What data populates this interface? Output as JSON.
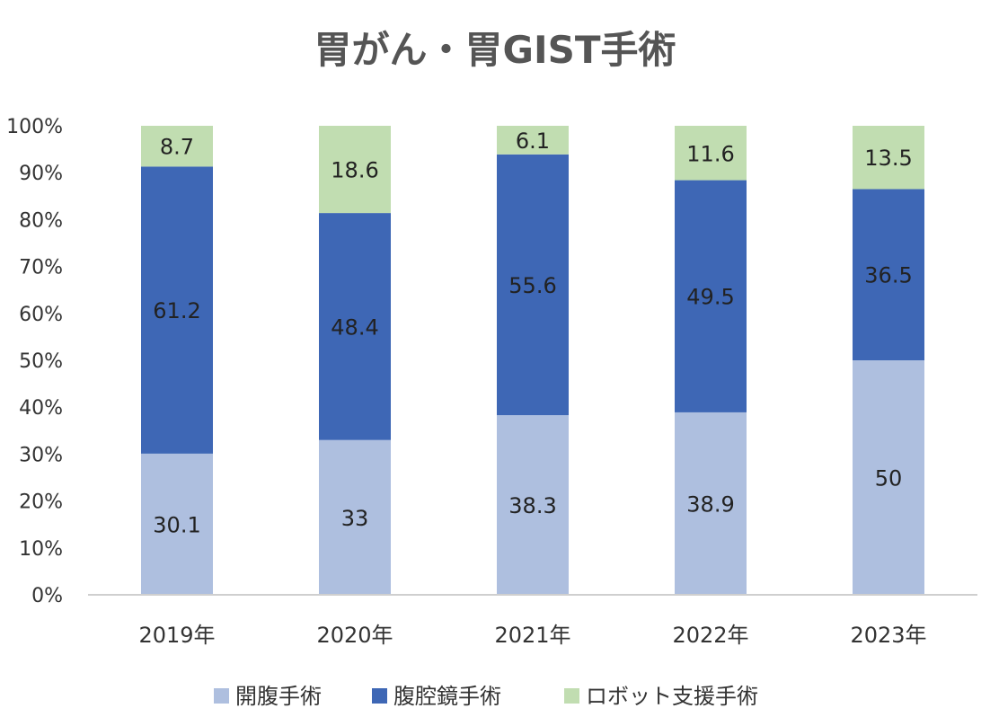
{
  "chart_data": {
    "type": "bar",
    "stacked": true,
    "title": "胃がん・胃GIST手術",
    "categories": [
      "2019年",
      "2020年",
      "2021年",
      "2022年",
      "2023年"
    ],
    "series": [
      {
        "name": "開腹手術",
        "values": [
          30.1,
          33,
          38.3,
          38.9,
          50
        ],
        "color": "#aebfdf"
      },
      {
        "name": "腹腔鏡手術",
        "values": [
          61.2,
          48.4,
          55.6,
          49.5,
          36.5
        ],
        "color": "#3e67b5"
      },
      {
        "name": "ロボット支援手術",
        "values": [
          8.7,
          18.6,
          6.1,
          11.6,
          13.5
        ],
        "color": "#c1ddb1"
      }
    ],
    "ylim": [
      0,
      100
    ],
    "yticks": [
      0,
      10,
      20,
      30,
      40,
      50,
      60,
      70,
      80,
      90,
      100
    ],
    "ytick_labels": [
      "0%",
      "10%",
      "20%",
      "30%",
      "40%",
      "50%",
      "60%",
      "70%",
      "80%",
      "90%",
      "100%"
    ],
    "xlabel": "",
    "ylabel": "",
    "grid": false,
    "legend_position": "bottom"
  }
}
